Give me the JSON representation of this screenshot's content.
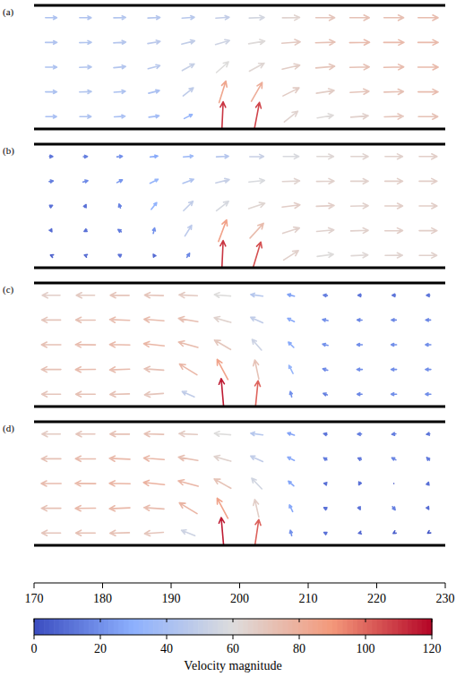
{
  "chart_data": [
    {
      "type": "quiver",
      "label": "(a)",
      "xlim": [
        170,
        230
      ],
      "ylim": [
        0,
        10
      ],
      "tick_labels": false,
      "x": [
        172.5,
        177.5,
        182.5,
        187.5,
        192.5,
        197.5,
        202.5,
        207.5,
        212.5,
        217.5,
        222.5,
        227.5
      ],
      "y": [
        1,
        3,
        5,
        7,
        9
      ],
      "u": [
        [
          40,
          42,
          40,
          38,
          30,
          5,
          20,
          50,
          60,
          65,
          70,
          72
        ],
        [
          42,
          44,
          42,
          40,
          38,
          25,
          40,
          60,
          66,
          70,
          72,
          74
        ],
        [
          42,
          44,
          44,
          44,
          45,
          45,
          55,
          65,
          70,
          72,
          74,
          75
        ],
        [
          43,
          44,
          45,
          46,
          48,
          52,
          60,
          68,
          72,
          74,
          75,
          75
        ],
        [
          42,
          43,
          44,
          45,
          46,
          50,
          56,
          64,
          70,
          72,
          73,
          74
        ]
      ],
      "v": [
        [
          0,
          0,
          2,
          5,
          15,
          110,
          105,
          40,
          10,
          5,
          2,
          0
        ],
        [
          0,
          1,
          3,
          10,
          30,
          80,
          70,
          30,
          10,
          4,
          2,
          0
        ],
        [
          0,
          1,
          4,
          12,
          25,
          40,
          30,
          15,
          6,
          2,
          1,
          0
        ],
        [
          0,
          1,
          3,
          8,
          12,
          15,
          10,
          5,
          2,
          1,
          0,
          0
        ],
        [
          0,
          0,
          1,
          2,
          3,
          3,
          2,
          1,
          0,
          0,
          0,
          0
        ]
      ]
    },
    {
      "type": "quiver",
      "label": "(b)",
      "xlim": [
        170,
        230
      ],
      "ylim": [
        0,
        10
      ],
      "tick_labels": false,
      "x": [
        172.5,
        177.5,
        182.5,
        187.5,
        192.5,
        197.5,
        202.5,
        207.5,
        212.5,
        217.5,
        222.5,
        227.5
      ],
      "y": [
        1,
        3,
        5,
        7,
        9
      ],
      "u": [
        [
          -5,
          -8,
          -10,
          -5,
          10,
          5,
          30,
          55,
          60,
          62,
          64,
          65
        ],
        [
          5,
          -10,
          -12,
          5,
          25,
          30,
          50,
          62,
          64,
          65,
          66,
          66
        ],
        [
          10,
          5,
          -5,
          20,
          35,
          45,
          60,
          66,
          66,
          65,
          66,
          66
        ],
        [
          15,
          18,
          20,
          30,
          40,
          50,
          58,
          64,
          65,
          65,
          66,
          66
        ],
        [
          12,
          15,
          20,
          28,
          36,
          45,
          52,
          58,
          62,
          64,
          65,
          66
        ]
      ],
      "v": [
        [
          2,
          3,
          5,
          8,
          15,
          110,
          100,
          35,
          8,
          3,
          1,
          0
        ],
        [
          -8,
          -5,
          8,
          20,
          40,
          80,
          55,
          20,
          6,
          2,
          1,
          0
        ],
        [
          5,
          10,
          15,
          25,
          35,
          35,
          20,
          8,
          3,
          1,
          0,
          0
        ],
        [
          2,
          5,
          10,
          15,
          15,
          12,
          6,
          2,
          1,
          0,
          0,
          0
        ],
        [
          0,
          1,
          2,
          3,
          3,
          2,
          1,
          0,
          0,
          0,
          0,
          0
        ]
      ]
    },
    {
      "type": "quiver",
      "label": "(c)",
      "xlim": [
        170,
        230
      ],
      "ylim": [
        0,
        10
      ],
      "tick_labels": false,
      "x": [
        172.5,
        177.5,
        182.5,
        187.5,
        192.5,
        197.5,
        202.5,
        207.5,
        212.5,
        217.5,
        222.5,
        227.5
      ],
      "y": [
        1,
        3,
        5,
        7,
        9
      ],
      "u": [
        [
          -70,
          -72,
          -72,
          -70,
          -45,
          -10,
          10,
          -5,
          -15,
          -18,
          -20,
          -20
        ],
        [
          -72,
          -74,
          -74,
          -72,
          -65,
          -40,
          -15,
          -15,
          -18,
          -20,
          -20,
          -20
        ],
        [
          -72,
          -74,
          -75,
          -76,
          -72,
          -60,
          -35,
          -20,
          -20,
          -20,
          -20,
          -20
        ],
        [
          -70,
          -72,
          -74,
          -74,
          -72,
          -62,
          -45,
          -25,
          -20,
          -18,
          -18,
          -18
        ],
        [
          -66,
          -68,
          -70,
          -70,
          -68,
          -60,
          -45,
          -25,
          -15,
          -12,
          -12,
          -12
        ]
      ],
      "v": [
        [
          0,
          0,
          -2,
          -5,
          20,
          115,
          100,
          20,
          5,
          0,
          0,
          0
        ],
        [
          0,
          -1,
          -3,
          5,
          40,
          75,
          70,
          30,
          5,
          0,
          0,
          0
        ],
        [
          0,
          1,
          2,
          8,
          20,
          35,
          40,
          20,
          5,
          0,
          0,
          0
        ],
        [
          0,
          1,
          3,
          6,
          12,
          18,
          20,
          12,
          4,
          1,
          0,
          0
        ],
        [
          0,
          0,
          1,
          2,
          3,
          5,
          6,
          6,
          2,
          0,
          0,
          0
        ]
      ]
    },
    {
      "type": "quiver",
      "label": "(d)",
      "xlim": [
        170,
        230
      ],
      "ylim": [
        0,
        10
      ],
      "tick_labels": "x",
      "xticks": [
        170,
        180,
        190,
        200,
        210,
        220,
        230
      ],
      "x": [
        172.5,
        177.5,
        182.5,
        187.5,
        192.5,
        197.5,
        202.5,
        207.5,
        212.5,
        217.5,
        222.5,
        227.5
      ],
      "y": [
        1,
        3,
        5,
        7,
        9
      ],
      "u": [
        [
          -70,
          -72,
          -72,
          -70,
          -50,
          -10,
          15,
          -5,
          -10,
          -8,
          -5,
          -3
        ],
        [
          -72,
          -75,
          -76,
          -74,
          -66,
          -40,
          -15,
          -12,
          -10,
          5,
          10,
          5
        ],
        [
          -74,
          -76,
          -77,
          -78,
          -74,
          -62,
          -38,
          -20,
          -10,
          -5,
          0,
          3
        ],
        [
          -72,
          -74,
          -76,
          -76,
          -72,
          -62,
          -45,
          -25,
          -12,
          -12,
          -15,
          -10
        ],
        [
          -68,
          -70,
          -72,
          -72,
          -68,
          -60,
          -45,
          -25,
          -12,
          -15,
          -15,
          -12
        ]
      ],
      "v": [
        [
          0,
          0,
          -2,
          -5,
          20,
          115,
          100,
          20,
          5,
          -2,
          -3,
          -2
        ],
        [
          0,
          -1,
          -3,
          5,
          40,
          75,
          65,
          25,
          5,
          -10,
          -12,
          -8
        ],
        [
          0,
          1,
          2,
          8,
          20,
          35,
          40,
          18,
          2,
          -10,
          0,
          10
        ],
        [
          0,
          1,
          3,
          6,
          12,
          18,
          20,
          12,
          8,
          5,
          8,
          10
        ],
        [
          0,
          0,
          1,
          2,
          3,
          5,
          6,
          8,
          3,
          0,
          -2,
          -2
        ]
      ]
    }
  ],
  "colorbar": {
    "range": [
      0,
      120
    ],
    "ticks": [
      0,
      20,
      40,
      60,
      80,
      100,
      120
    ],
    "label": "Velocity magnitude"
  }
}
